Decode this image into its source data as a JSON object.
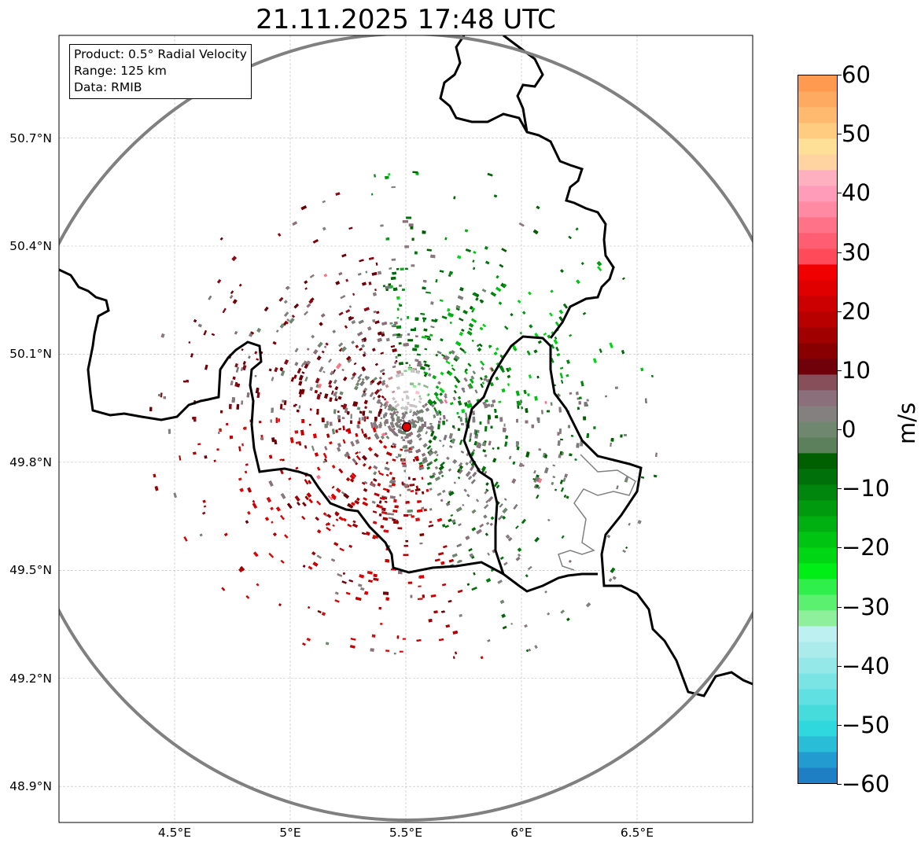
{
  "title": "21.11.2025 17:48 UTC",
  "info_box": {
    "product": "Product: 0.5° Radial Velocity",
    "range": "Range: 125 km",
    "data": "Data: RMIB"
  },
  "map": {
    "lon_range": [
      4.0,
      7.0
    ],
    "lat_range": [
      48.8,
      50.985
    ],
    "radar_site": {
      "lon": 5.505,
      "lat": 49.914
    },
    "range_km": 125,
    "lat_ticks": [
      {
        "value": 48.9,
        "label": "48.9°N"
      },
      {
        "value": 49.2,
        "label": "49.2°N"
      },
      {
        "value": 49.5,
        "label": "49.5°N"
      },
      {
        "value": 49.8,
        "label": "49.8°N"
      },
      {
        "value": 50.1,
        "label": "50.1°N"
      },
      {
        "value": 50.4,
        "label": "50.4°N"
      },
      {
        "value": 50.7,
        "label": "50.7°N"
      }
    ],
    "lon_ticks": [
      {
        "value": 4.5,
        "label": "4.5°E"
      },
      {
        "value": 5.0,
        "label": "5°E"
      },
      {
        "value": 5.5,
        "label": "5.5°E"
      },
      {
        "value": 6.0,
        "label": "6°E"
      },
      {
        "value": 6.5,
        "label": "6.5°E"
      }
    ],
    "colors": {
      "range_ring": "#808080",
      "border": "#000000",
      "minor_border": "#808080",
      "grid": "#bbbbbb",
      "radar_marker": "#e00000"
    }
  },
  "colorbar": {
    "unit": "m/s",
    "min": -60,
    "max": 60,
    "ticks": [
      {
        "value": 60,
        "label": "60"
      },
      {
        "value": 50,
        "label": "50"
      },
      {
        "value": 40,
        "label": "40"
      },
      {
        "value": 30,
        "label": "30"
      },
      {
        "value": 20,
        "label": "20"
      },
      {
        "value": 10,
        "label": "10"
      },
      {
        "value": 0,
        "label": "0"
      },
      {
        "value": -10,
        "label": "−10"
      },
      {
        "value": -20,
        "label": "−20"
      },
      {
        "value": -30,
        "label": "−30"
      },
      {
        "value": -40,
        "label": "−40"
      },
      {
        "value": -50,
        "label": "−50"
      },
      {
        "value": -60,
        "label": "−60"
      }
    ],
    "bands": [
      "#1f7fc5",
      "#229cd0",
      "#29bdd8",
      "#2fd8dc",
      "#46dcdc",
      "#60e0e0",
      "#7ae4e4",
      "#94e8e8",
      "#acebeb",
      "#bdf0f0",
      "#8ef09a",
      "#5cf070",
      "#2ff04a",
      "#00ee16",
      "#00d614",
      "#00c412",
      "#00b010",
      "#009a0e",
      "#00860c",
      "#00700a",
      "#006000",
      "#5c7f5c",
      "#6f876f",
      "#858080",
      "#8b707b",
      "#874f5a",
      "#70000a",
      "#880000",
      "#a00000",
      "#b80000",
      "#cc0000",
      "#e00000",
      "#f00000",
      "#ff4a5a",
      "#ff5e72",
      "#ff7288",
      "#ff8aa2",
      "#ff9cba",
      "#ffb0c0",
      "#ffd4a0",
      "#ffe096",
      "#ffcc80",
      "#ffba70",
      "#ffaa60",
      "#ff9a50"
    ]
  }
}
